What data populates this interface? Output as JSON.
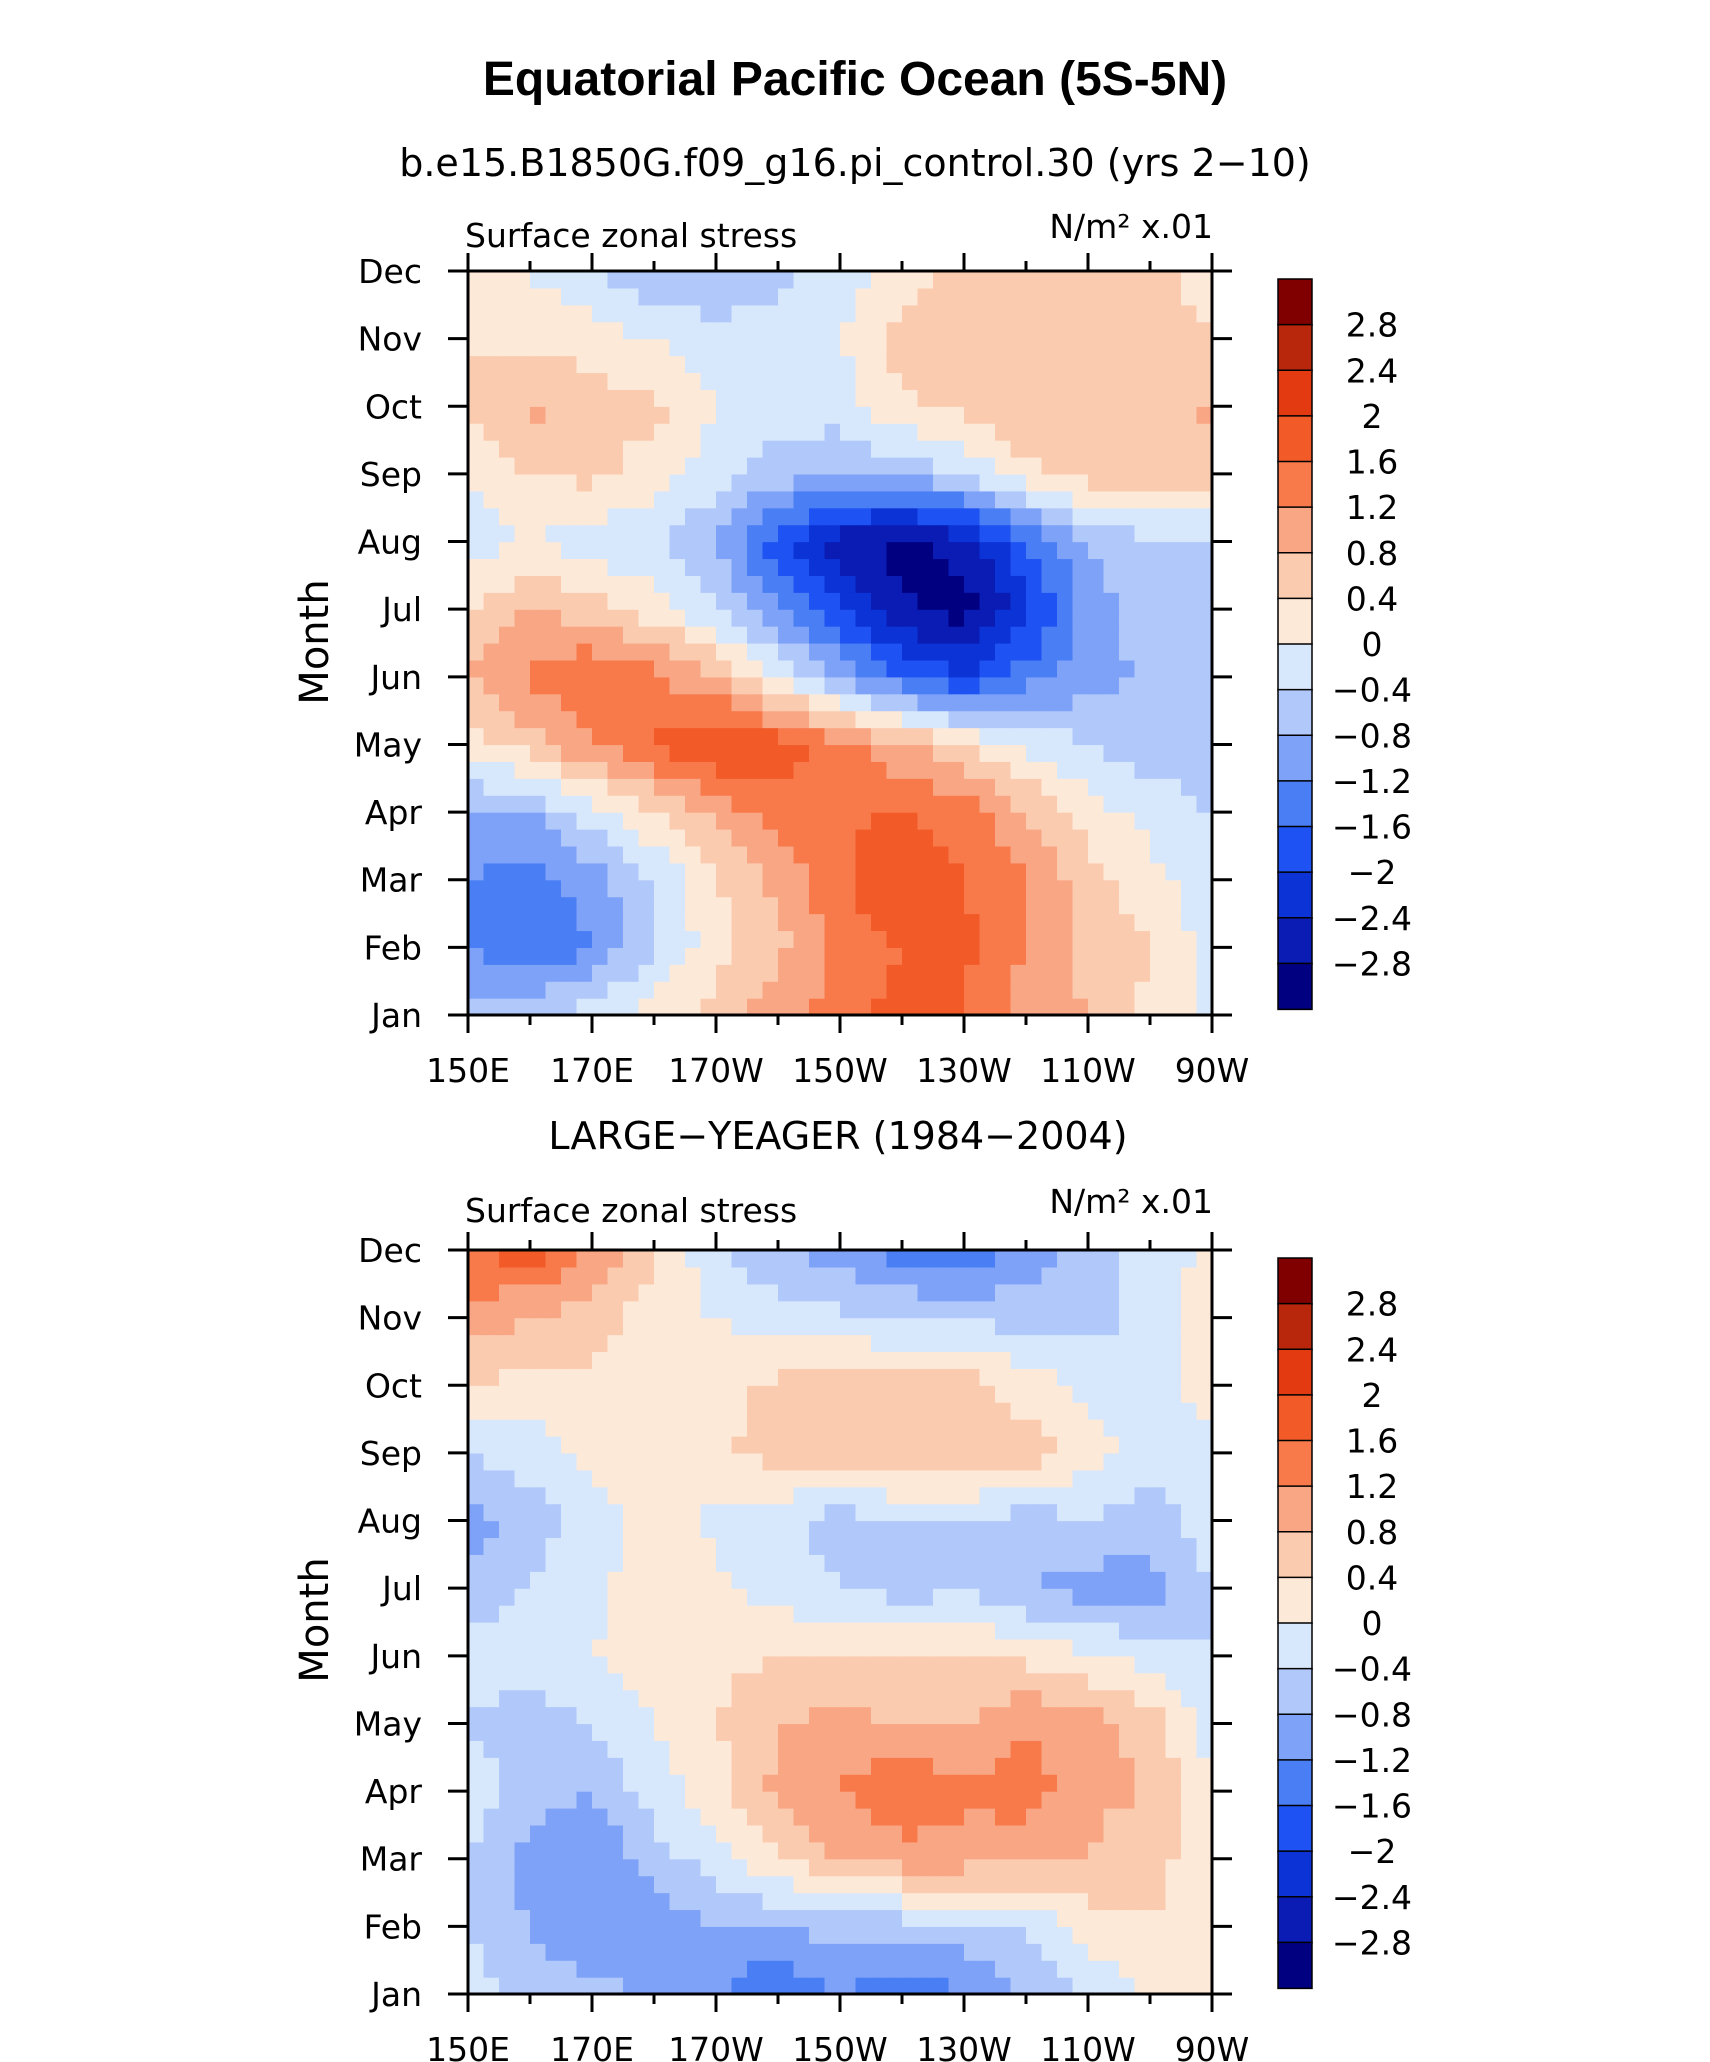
{
  "figure": {
    "title": "Equatorial Pacific Ocean (5S-5N)"
  },
  "chart_data": [
    {
      "type": "heatmap",
      "title": "b.e15.B1850G.f09_g16.pi_control.30 (yrs 2−10)",
      "left_label": "Surface zonal stress",
      "units": "N/m² x.01",
      "xlabel": "",
      "ylabel": "Month",
      "x_tick_labels": [
        "150E",
        "170E",
        "170W",
        "150W",
        "130W",
        "110W",
        "90W"
      ],
      "y_tick_labels": [
        "Jan",
        "Feb",
        "Mar",
        "Apr",
        "May",
        "Jun",
        "Jul",
        "Aug",
        "Sep",
        "Oct",
        "Nov",
        "Dec"
      ],
      "contour_levels": [
        -2.8,
        -2.4,
        -2,
        -1.6,
        -1.2,
        -0.8,
        -0.4,
        0,
        0.4,
        0.8,
        1.2,
        1.6,
        2,
        2.4,
        2.8
      ],
      "colorbar_labels": [
        "2.8",
        "2.4",
        "2",
        "1.6",
        "1.2",
        "0.8",
        "0.4",
        "0",
        "−0.4",
        "−0.8",
        "−1.2",
        "−1.6",
        "−2",
        "−2.4",
        "−2.8"
      ],
      "grid": {
        "x": [
          150,
          160,
          170,
          180,
          190,
          200,
          210,
          220,
          230,
          240,
          250,
          260,
          270
        ],
        "y": [
          "Jan",
          "Feb",
          "Mar",
          "Apr",
          "May",
          "Jun",
          "Jul",
          "Aug",
          "Sep",
          "Oct",
          "Nov",
          "Dec"
        ],
        "z": [
          [
            -0.6,
            -0.4,
            -0.2,
            0.2,
            0.6,
            1.0,
            1.4,
            1.8,
            1.6,
            1.0,
            0.8,
            0.3,
            -0.1
          ],
          [
            -1.2,
            -1.6,
            -1.2,
            -0.4,
            0.2,
            0.7,
            1.3,
            1.6,
            1.7,
            1.2,
            0.6,
            0.4,
            -0.2
          ],
          [
            -1.2,
            -1.4,
            -1.0,
            -0.4,
            0.4,
            0.9,
            1.5,
            2.1,
            1.6,
            1.2,
            0.6,
            0.2,
            -0.4
          ],
          [
            -0.8,
            -0.8,
            -0.2,
            0.4,
            0.9,
            1.4,
            1.5,
            1.6,
            1.4,
            0.8,
            0.2,
            -0.2,
            -0.4
          ],
          [
            0.2,
            0.6,
            1.2,
            1.6,
            2.1,
            1.8,
            1.4,
            0.9,
            0.4,
            -0.1,
            -0.4,
            -0.6,
            -0.6
          ],
          [
            0.8,
            1.3,
            1.6,
            1.3,
            0.8,
            0.0,
            -0.8,
            -1.6,
            -2.0,
            -1.4,
            -1.0,
            -0.7,
            -0.6
          ],
          [
            0.4,
            0.8,
            0.6,
            0.2,
            -0.4,
            -1.2,
            -2.0,
            -2.7,
            -3.0,
            -2.2,
            -1.0,
            -0.6,
            -0.5
          ],
          [
            -0.2,
            0.0,
            -0.2,
            -0.4,
            -0.8,
            -1.8,
            -2.6,
            -3.0,
            -2.6,
            -1.6,
            -0.8,
            -0.5,
            -0.4
          ],
          [
            0.0,
            0.4,
            0.5,
            0.2,
            -0.2,
            -0.6,
            -0.8,
            -0.6,
            -0.4,
            0.3,
            0.6,
            0.6,
            0.6
          ],
          [
            0.4,
            0.9,
            0.6,
            0.5,
            0.0,
            -0.2,
            -0.2,
            0.3,
            0.5,
            0.8,
            0.6,
            0.5,
            0.9
          ],
          [
            0.4,
            0.3,
            0.2,
            0.0,
            -0.2,
            -0.2,
            0.0,
            0.6,
            0.6,
            0.5,
            0.8,
            0.5,
            0.4
          ],
          [
            0.2,
            0.0,
            -0.4,
            -0.8,
            -0.8,
            -0.5,
            -0.3,
            0.2,
            0.6,
            0.6,
            0.6,
            0.5,
            0.3
          ]
        ]
      }
    },
    {
      "type": "heatmap",
      "title": "LARGE−YEAGER (1984−2004)",
      "left_label": "Surface zonal stress",
      "units": "N/m² x.01",
      "xlabel": "",
      "ylabel": "Month",
      "x_tick_labels": [
        "150E",
        "170E",
        "170W",
        "150W",
        "130W",
        "110W",
        "90W"
      ],
      "y_tick_labels": [
        "Jan",
        "Feb",
        "Mar",
        "Apr",
        "May",
        "Jun",
        "Jul",
        "Aug",
        "Sep",
        "Oct",
        "Nov",
        "Dec"
      ],
      "contour_levels": [
        -2.8,
        -2.4,
        -2,
        -1.6,
        -1.2,
        -0.8,
        -0.4,
        0,
        0.4,
        0.8,
        1.2,
        1.6,
        2,
        2.4,
        2.8
      ],
      "colorbar_labels": [
        "2.8",
        "2.4",
        "2",
        "1.6",
        "1.2",
        "0.8",
        "0.4",
        "0",
        "−0.4",
        "−0.8",
        "−1.2",
        "−1.6",
        "−2",
        "−2.4",
        "−2.8"
      ],
      "grid": {
        "x": [
          150,
          160,
          170,
          180,
          190,
          200,
          210,
          220,
          230,
          240,
          250,
          260,
          270
        ],
        "y": [
          "Jan",
          "Feb",
          "Mar",
          "Apr",
          "May",
          "Jun",
          "Jul",
          "Aug",
          "Sep",
          "Oct",
          "Nov",
          "Dec"
        ],
        "z": [
          [
            -0.2,
            -0.6,
            -0.6,
            -1.0,
            -1.2,
            -1.6,
            -1.2,
            -1.6,
            -1.2,
            -0.8,
            -0.4,
            0.1,
            0.2
          ],
          [
            -0.4,
            -0.8,
            -1.2,
            -1.0,
            -0.8,
            -0.8,
            -0.6,
            -0.6,
            -0.6,
            -0.4,
            0.2,
            0.4,
            0.1
          ],
          [
            -0.4,
            -1.0,
            -1.2,
            -0.6,
            -0.2,
            0.4,
            0.8,
            1.0,
            1.0,
            0.9,
            0.8,
            0.5,
            0.2
          ],
          [
            -0.2,
            -0.6,
            -0.8,
            -0.2,
            0.2,
            0.9,
            1.2,
            1.6,
            1.3,
            1.4,
            0.9,
            0.8,
            0.0
          ],
          [
            -0.4,
            -0.6,
            -0.4,
            0.0,
            0.4,
            0.8,
            0.9,
            0.8,
            0.8,
            1.2,
            1.0,
            0.6,
            -0.2
          ],
          [
            -0.3,
            -0.2,
            0.0,
            0.2,
            0.3,
            0.4,
            0.5,
            0.5,
            0.4,
            0.3,
            0.1,
            -0.2,
            -0.4
          ],
          [
            -0.6,
            -0.4,
            -0.1,
            0.2,
            0.1,
            -0.2,
            -0.4,
            -0.6,
            -0.4,
            -0.8,
            -1.0,
            -1.0,
            -0.4
          ],
          [
            -1.0,
            -0.6,
            -0.2,
            0.2,
            -0.1,
            -0.3,
            -0.6,
            -0.4,
            -0.4,
            -0.6,
            -0.4,
            -0.6,
            -0.2
          ],
          [
            -0.4,
            -0.2,
            0.1,
            0.2,
            0.3,
            0.6,
            0.6,
            0.8,
            0.8,
            0.6,
            0.2,
            -0.2,
            -0.2
          ],
          [
            0.4,
            0.2,
            0.3,
            0.1,
            0.2,
            0.5,
            0.6,
            0.6,
            0.6,
            0.2,
            -0.1,
            -0.3,
            0.3
          ],
          [
            1.0,
            0.8,
            0.6,
            0.2,
            0.0,
            -0.2,
            -0.3,
            -0.4,
            -0.4,
            -0.6,
            -0.6,
            -0.2,
            0.2
          ],
          [
            1.6,
            1.8,
            1.2,
            0.4,
            -0.3,
            -0.8,
            -1.0,
            -1.4,
            -1.6,
            -1.0,
            -0.6,
            -0.2,
            0.1
          ]
        ]
      }
    }
  ],
  "colormap": [
    "#000080",
    "#0a1cb4",
    "#0b33d6",
    "#1e52f2",
    "#4a7ef5",
    "#7ea2f8",
    "#b1c8fa",
    "#d8e8fc",
    "#fde9d8",
    "#fbcbb0",
    "#f9a685",
    "#f87a4b",
    "#f25a28",
    "#e43a12",
    "#b8270b",
    "#800000"
  ]
}
